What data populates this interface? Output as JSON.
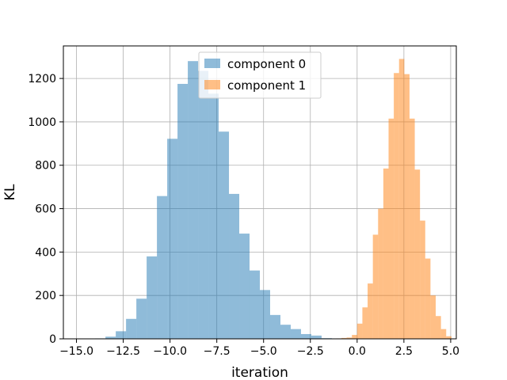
{
  "chart_data": {
    "type": "bar",
    "subtype": "histogram",
    "title": "",
    "xlabel": "iteration",
    "ylabel": "KL",
    "xlim": [
      -15.7,
      5.3
    ],
    "ylim": [
      0,
      1350
    ],
    "x_ticks": [
      -15.0,
      -12.5,
      -10.0,
      -7.5,
      -5.0,
      -2.5,
      0.0,
      2.5,
      5.0
    ],
    "x_tick_labels": [
      "−15.0",
      "−12.5",
      "−10.0",
      "−7.5",
      "−5.0",
      "−2.5",
      "0.0",
      "2.5",
      "5.0"
    ],
    "y_ticks": [
      0,
      200,
      400,
      600,
      800,
      1000,
      1200
    ],
    "y_tick_labels": [
      "0",
      "200",
      "400",
      "600",
      "800",
      "1000",
      "1200"
    ],
    "grid": true,
    "legend_position": "top-center",
    "series": [
      {
        "name": "component 0",
        "color": "#1f77b4",
        "alpha": 0.5,
        "bins": [
          [
            -14.0,
            -13.45,
            2
          ],
          [
            -13.45,
            -12.9,
            10
          ],
          [
            -12.9,
            -12.35,
            35
          ],
          [
            -12.35,
            -11.8,
            92
          ],
          [
            -11.8,
            -11.25,
            185
          ],
          [
            -11.25,
            -10.7,
            380
          ],
          [
            -10.7,
            -10.15,
            658
          ],
          [
            -10.15,
            -9.6,
            922
          ],
          [
            -9.6,
            -9.05,
            1175
          ],
          [
            -9.05,
            -8.5,
            1280
          ],
          [
            -8.5,
            -7.95,
            1235
          ],
          [
            -7.95,
            -7.4,
            1130
          ],
          [
            -7.4,
            -6.85,
            955
          ],
          [
            -6.85,
            -6.3,
            668
          ],
          [
            -6.3,
            -5.75,
            485
          ],
          [
            -5.75,
            -5.2,
            315
          ],
          [
            -5.2,
            -4.65,
            225
          ],
          [
            -4.65,
            -4.1,
            110
          ],
          [
            -4.1,
            -3.55,
            65
          ],
          [
            -3.55,
            -3.0,
            45
          ],
          [
            -3.0,
            -2.45,
            22
          ],
          [
            -2.45,
            -1.9,
            15
          ],
          [
            -1.9,
            -1.35,
            3
          ]
        ]
      },
      {
        "name": "component 1",
        "color": "#ff7f0e",
        "alpha": 0.5,
        "bins": [
          [
            -1.4,
            -1.12,
            1
          ],
          [
            -1.12,
            -0.84,
            2
          ],
          [
            -0.84,
            -0.56,
            4
          ],
          [
            -0.56,
            -0.28,
            6
          ],
          [
            -0.28,
            0.0,
            18
          ],
          [
            0.0,
            0.28,
            70
          ],
          [
            0.28,
            0.56,
            145
          ],
          [
            0.56,
            0.84,
            255
          ],
          [
            0.84,
            1.12,
            480
          ],
          [
            1.12,
            1.4,
            600
          ],
          [
            1.4,
            1.68,
            785
          ],
          [
            1.68,
            1.96,
            1015
          ],
          [
            1.96,
            2.24,
            1225
          ],
          [
            2.24,
            2.52,
            1290
          ],
          [
            2.52,
            2.8,
            1220
          ],
          [
            2.8,
            3.08,
            1015
          ],
          [
            3.08,
            3.36,
            780
          ],
          [
            3.36,
            3.64,
            545
          ],
          [
            3.64,
            3.92,
            370
          ],
          [
            3.92,
            4.2,
            200
          ],
          [
            4.2,
            4.48,
            105
          ],
          [
            4.48,
            4.76,
            45
          ],
          [
            4.76,
            5.04,
            12
          ]
        ]
      }
    ]
  }
}
